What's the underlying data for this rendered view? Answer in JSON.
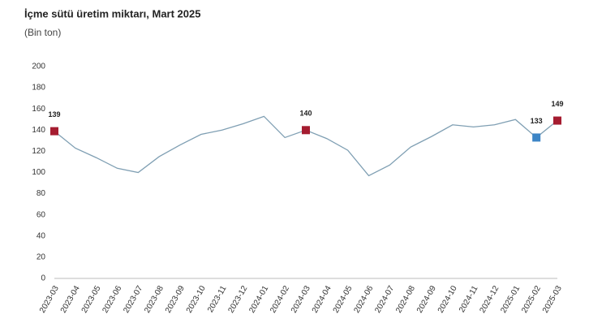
{
  "chart_data": {
    "type": "line",
    "title": "İçme sütü üretim miktarı, Mart 2025",
    "subtitle": "(Bin ton)",
    "categories": [
      "2023-03",
      "2023-04",
      "2023-05",
      "2023-06",
      "2023-07",
      "2023-08",
      "2023-09",
      "2023-10",
      "2023-11",
      "2023-12",
      "2024-01",
      "2024-02",
      "2024-03",
      "2024-04",
      "2024-05",
      "2024-06",
      "2024-07",
      "2024-08",
      "2024-09",
      "2024-10",
      "2024-11",
      "2024-12",
      "2025-01",
      "2025-02",
      "2025-03"
    ],
    "values": [
      139,
      123,
      114,
      104,
      100,
      115,
      126,
      136,
      140,
      146,
      153,
      133,
      140,
      132,
      121,
      97,
      107,
      124,
      134,
      145,
      143,
      145,
      150,
      133,
      149
    ],
    "color": "#7f9fb3",
    "marker_colors": [
      "#a51c30",
      null,
      null,
      null,
      null,
      null,
      null,
      null,
      null,
      null,
      null,
      null,
      "#a51c30",
      null,
      null,
      null,
      null,
      null,
      null,
      null,
      null,
      null,
      null,
      "#3d85c6",
      "#a51c30"
    ],
    "ylim": [
      0,
      200
    ],
    "yticks": [
      0,
      20,
      40,
      60,
      80,
      100,
      120,
      140,
      160,
      180,
      200
    ],
    "grid": false
  }
}
